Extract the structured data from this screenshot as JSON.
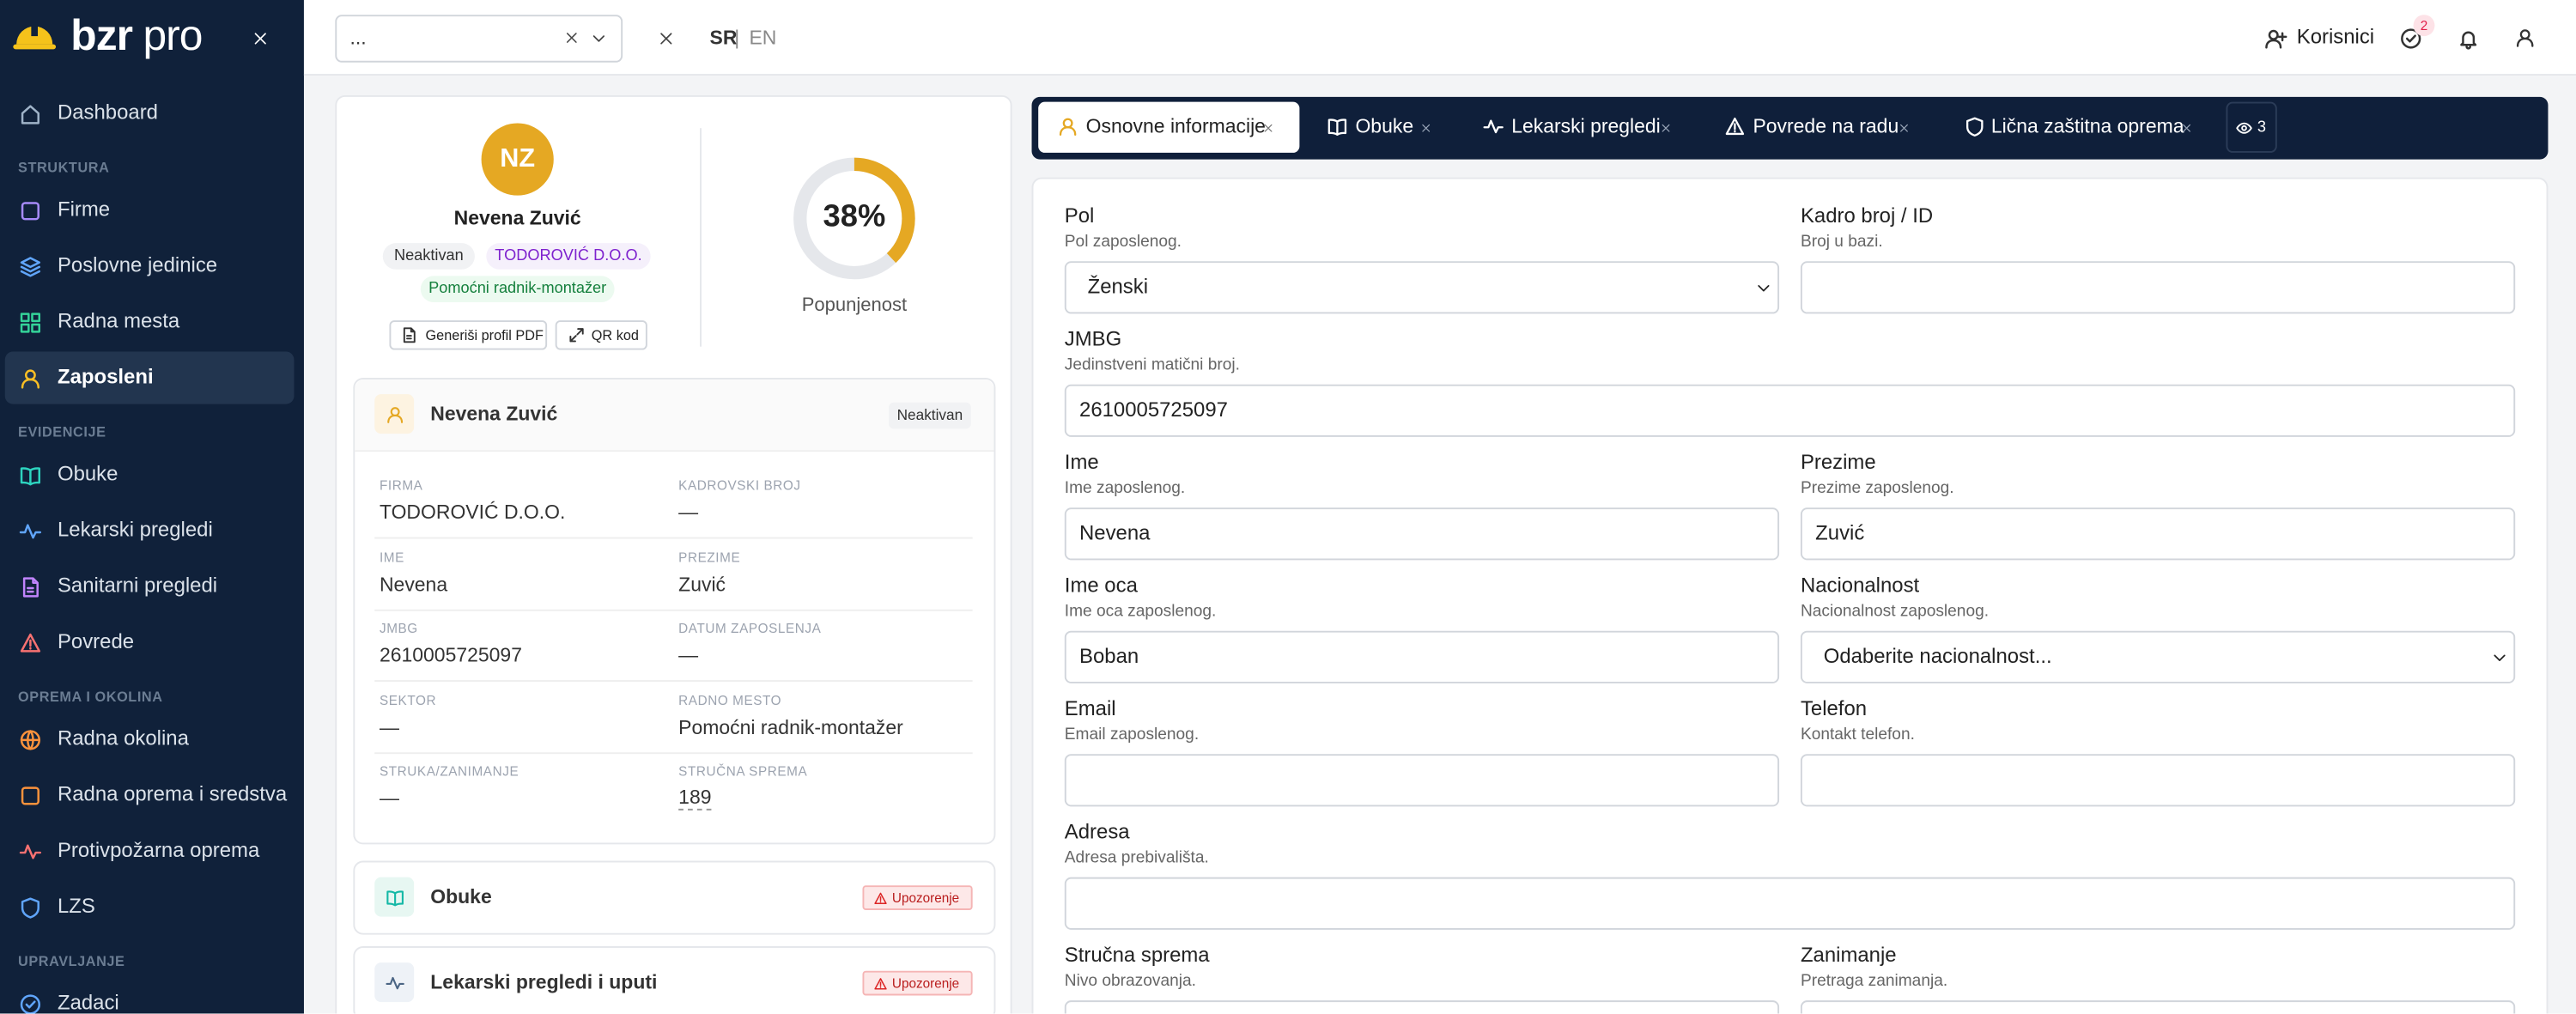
{
  "sidebar": {
    "brand": {
      "bold": "bzr",
      "light": "pro"
    },
    "dashboard": "Dashboard",
    "groups": [
      {
        "title": "STRUKTURA",
        "items": [
          "Firme",
          "Poslovne jedinice",
          "Radna mesta",
          "Zaposleni"
        ]
      },
      {
        "title": "EVIDENCIJE",
        "items": [
          "Obuke",
          "Lekarski pregledi",
          "Sanitarni pregledi",
          "Povrede"
        ]
      },
      {
        "title": "OPREMA I OKOLINA",
        "items": [
          "Radna okolina",
          "Radna oprema i sredstva",
          "Protivpožarna oprema",
          "LZS"
        ]
      },
      {
        "title": "UPRAVLJANJE",
        "items": [
          "Zadaci"
        ]
      }
    ]
  },
  "topbar": {
    "select": "...",
    "lang": {
      "sr": "SR",
      "separator": "|",
      "en": "EN"
    },
    "users": "Korisnici",
    "task_badge": "2"
  },
  "profile": {
    "initials": "NZ",
    "name": "Nevena Zuvić",
    "status": "Neaktivan",
    "company": "TODOROVIĆ D.O.O.",
    "position": "Pomoćni radnik-montažer",
    "buttons": [
      "Generiši profil PDF",
      "QR kod"
    ],
    "completion": {
      "value": 38,
      "label": "38%"
    },
    "completion_label": "Popunjenost"
  },
  "details": {
    "title": "Nevena Zuvić",
    "status": "Neaktivan",
    "fields": [
      {
        "label": "FIRMA",
        "value": "TODOROVIĆ D.O.O."
      },
      {
        "label": "KADROVSKI BROJ",
        "value": "—"
      },
      {
        "label": "IME",
        "value": "Nevena"
      },
      {
        "label": "PREZIME",
        "value": "Zuvić"
      },
      {
        "label": "JMBG",
        "value": "2610005725097"
      },
      {
        "label": "DATUM ZAPOSLENJA",
        "value": "—"
      },
      {
        "label": "SEKTOR",
        "value": "—"
      },
      {
        "label": "RADNO MESTO",
        "value": "Pomoćni radnik-montažer"
      },
      {
        "label": "STRUKA/ZANIMANJE",
        "value": "—"
      },
      {
        "label": "STRUČNA SPREMA",
        "value": "189"
      }
    ]
  },
  "sections": [
    {
      "title": "Obuke",
      "badge": "Upozorenje"
    },
    {
      "title": "Lekarski pregledi i uputi",
      "badge": "Upozorenje"
    }
  ],
  "tabs": {
    "items": [
      "Osnovne informacije",
      "Obuke",
      "Lekarski pregledi",
      "Povrede na radu",
      "Lična zaštitna oprema"
    ],
    "hidden_count": "3"
  },
  "form": {
    "rows": [
      [
        {
          "label": "Pol",
          "help": "Pol zaposlenog.",
          "value": "Ženski",
          "type": "select"
        },
        {
          "label": "Kadro broj / ID",
          "help": "Broj u bazi."
        }
      ],
      [
        {
          "label": "JMBG",
          "help": "Jedinstveni matični broj.",
          "value": "2610005725097"
        }
      ],
      [
        {
          "label": "Ime",
          "help": "Ime zaposlenog.",
          "value": "Nevena"
        },
        {
          "label": "Prezime",
          "help": "Prezime zaposlenog.",
          "value": "Zuvić"
        }
      ],
      [
        {
          "label": "Ime oca",
          "help": "Ime oca zaposlenog.",
          "value": "Boban"
        },
        {
          "label": "Nacionalnost",
          "help": "Nacionalnost zaposlenog.",
          "value": "Odaberite nacionalnost...",
          "type": "select"
        }
      ],
      [
        {
          "label": "Email",
          "help": "Email zaposlenog."
        },
        {
          "label": "Telefon",
          "help": "Kontakt telefon."
        }
      ],
      [
        {
          "label": "Adresa",
          "help": "Adresa prebivališta."
        }
      ],
      [
        {
          "label": "Stručna sprema",
          "help": "Nivo obrazovanja."
        },
        {
          "label": "Zanimanje",
          "help": "Pretraga zanimanja."
        }
      ]
    ]
  }
}
